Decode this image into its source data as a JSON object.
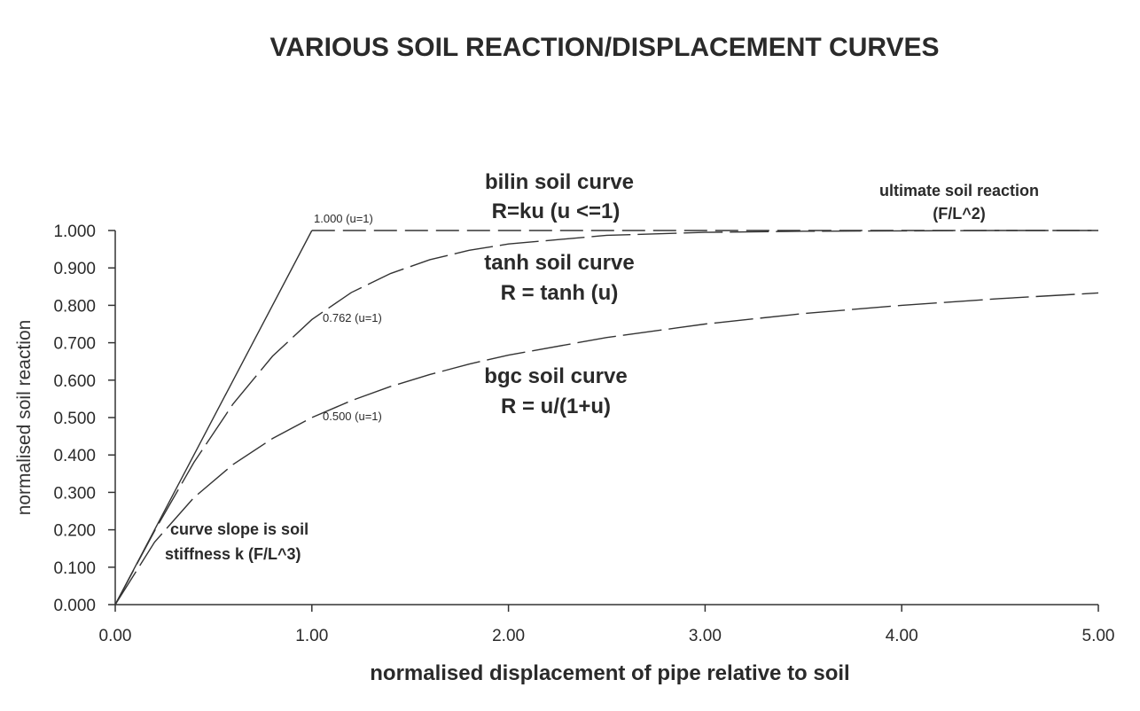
{
  "chart_data": {
    "type": "line",
    "title": "VARIOUS SOIL REACTION/DISPLACEMENT CURVES",
    "xlabel": "normalised displacement of pipe relative to soil",
    "ylabel": "normalised soil reaction",
    "xlim": [
      0,
      5
    ],
    "ylim": [
      0,
      1
    ],
    "x_ticks": [
      "0.00",
      "1.00",
      "2.00",
      "3.00",
      "4.00",
      "5.00"
    ],
    "y_ticks": [
      "0.000",
      "0.100",
      "0.200",
      "0.300",
      "0.400",
      "0.500",
      "0.600",
      "0.700",
      "0.800",
      "0.900",
      "1.000"
    ],
    "grid": false,
    "series": [
      {
        "x": [
          0,
          1,
          2,
          3,
          4,
          5
        ],
        "values": [
          0,
          1.0,
          1.0,
          1.0,
          1.0,
          1.0
        ]
      },
      {
        "x": [
          0,
          0.2,
          0.4,
          0.6,
          0.8,
          1.0,
          1.2,
          1.4,
          1.6,
          1.8,
          2.0,
          2.5,
          3.0,
          3.5,
          4.0,
          4.5,
          5.0
        ],
        "values": [
          0,
          0.197,
          0.38,
          0.537,
          0.664,
          0.762,
          0.834,
          0.885,
          0.922,
          0.947,
          0.964,
          0.987,
          0.995,
          0.998,
          0.999,
          1.0,
          1.0
        ]
      },
      {
        "x": [
          0,
          0.2,
          0.4,
          0.6,
          0.8,
          1.0,
          1.2,
          1.4,
          1.6,
          1.8,
          2.0,
          2.5,
          3.0,
          3.5,
          4.0,
          4.5,
          5.0
        ],
        "values": [
          0,
          0.167,
          0.286,
          0.375,
          0.444,
          0.5,
          0.545,
          0.583,
          0.615,
          0.643,
          0.667,
          0.714,
          0.75,
          0.778,
          0.8,
          0.818,
          0.833
        ]
      }
    ],
    "annotations": {
      "bilin_name": "bilin soil curve",
      "bilin_eq": "R=ku (u <=1)",
      "tanh_name": "tanh soil curve",
      "tanh_eq": "R = tanh (u)",
      "bgc_name": "bgc soil curve",
      "bgc_eq": "R = u/(1+u)",
      "ultimate_1": "ultimate soil reaction",
      "ultimate_2": "(F/L^2)",
      "slope_1": "curve slope is soil",
      "slope_2": "stiffness k (F/L^3)",
      "point_bilin": "1.000 (u=1)",
      "point_tanh": "0.762 (u=1)",
      "point_bgc": "0.500 (u=1)"
    }
  }
}
